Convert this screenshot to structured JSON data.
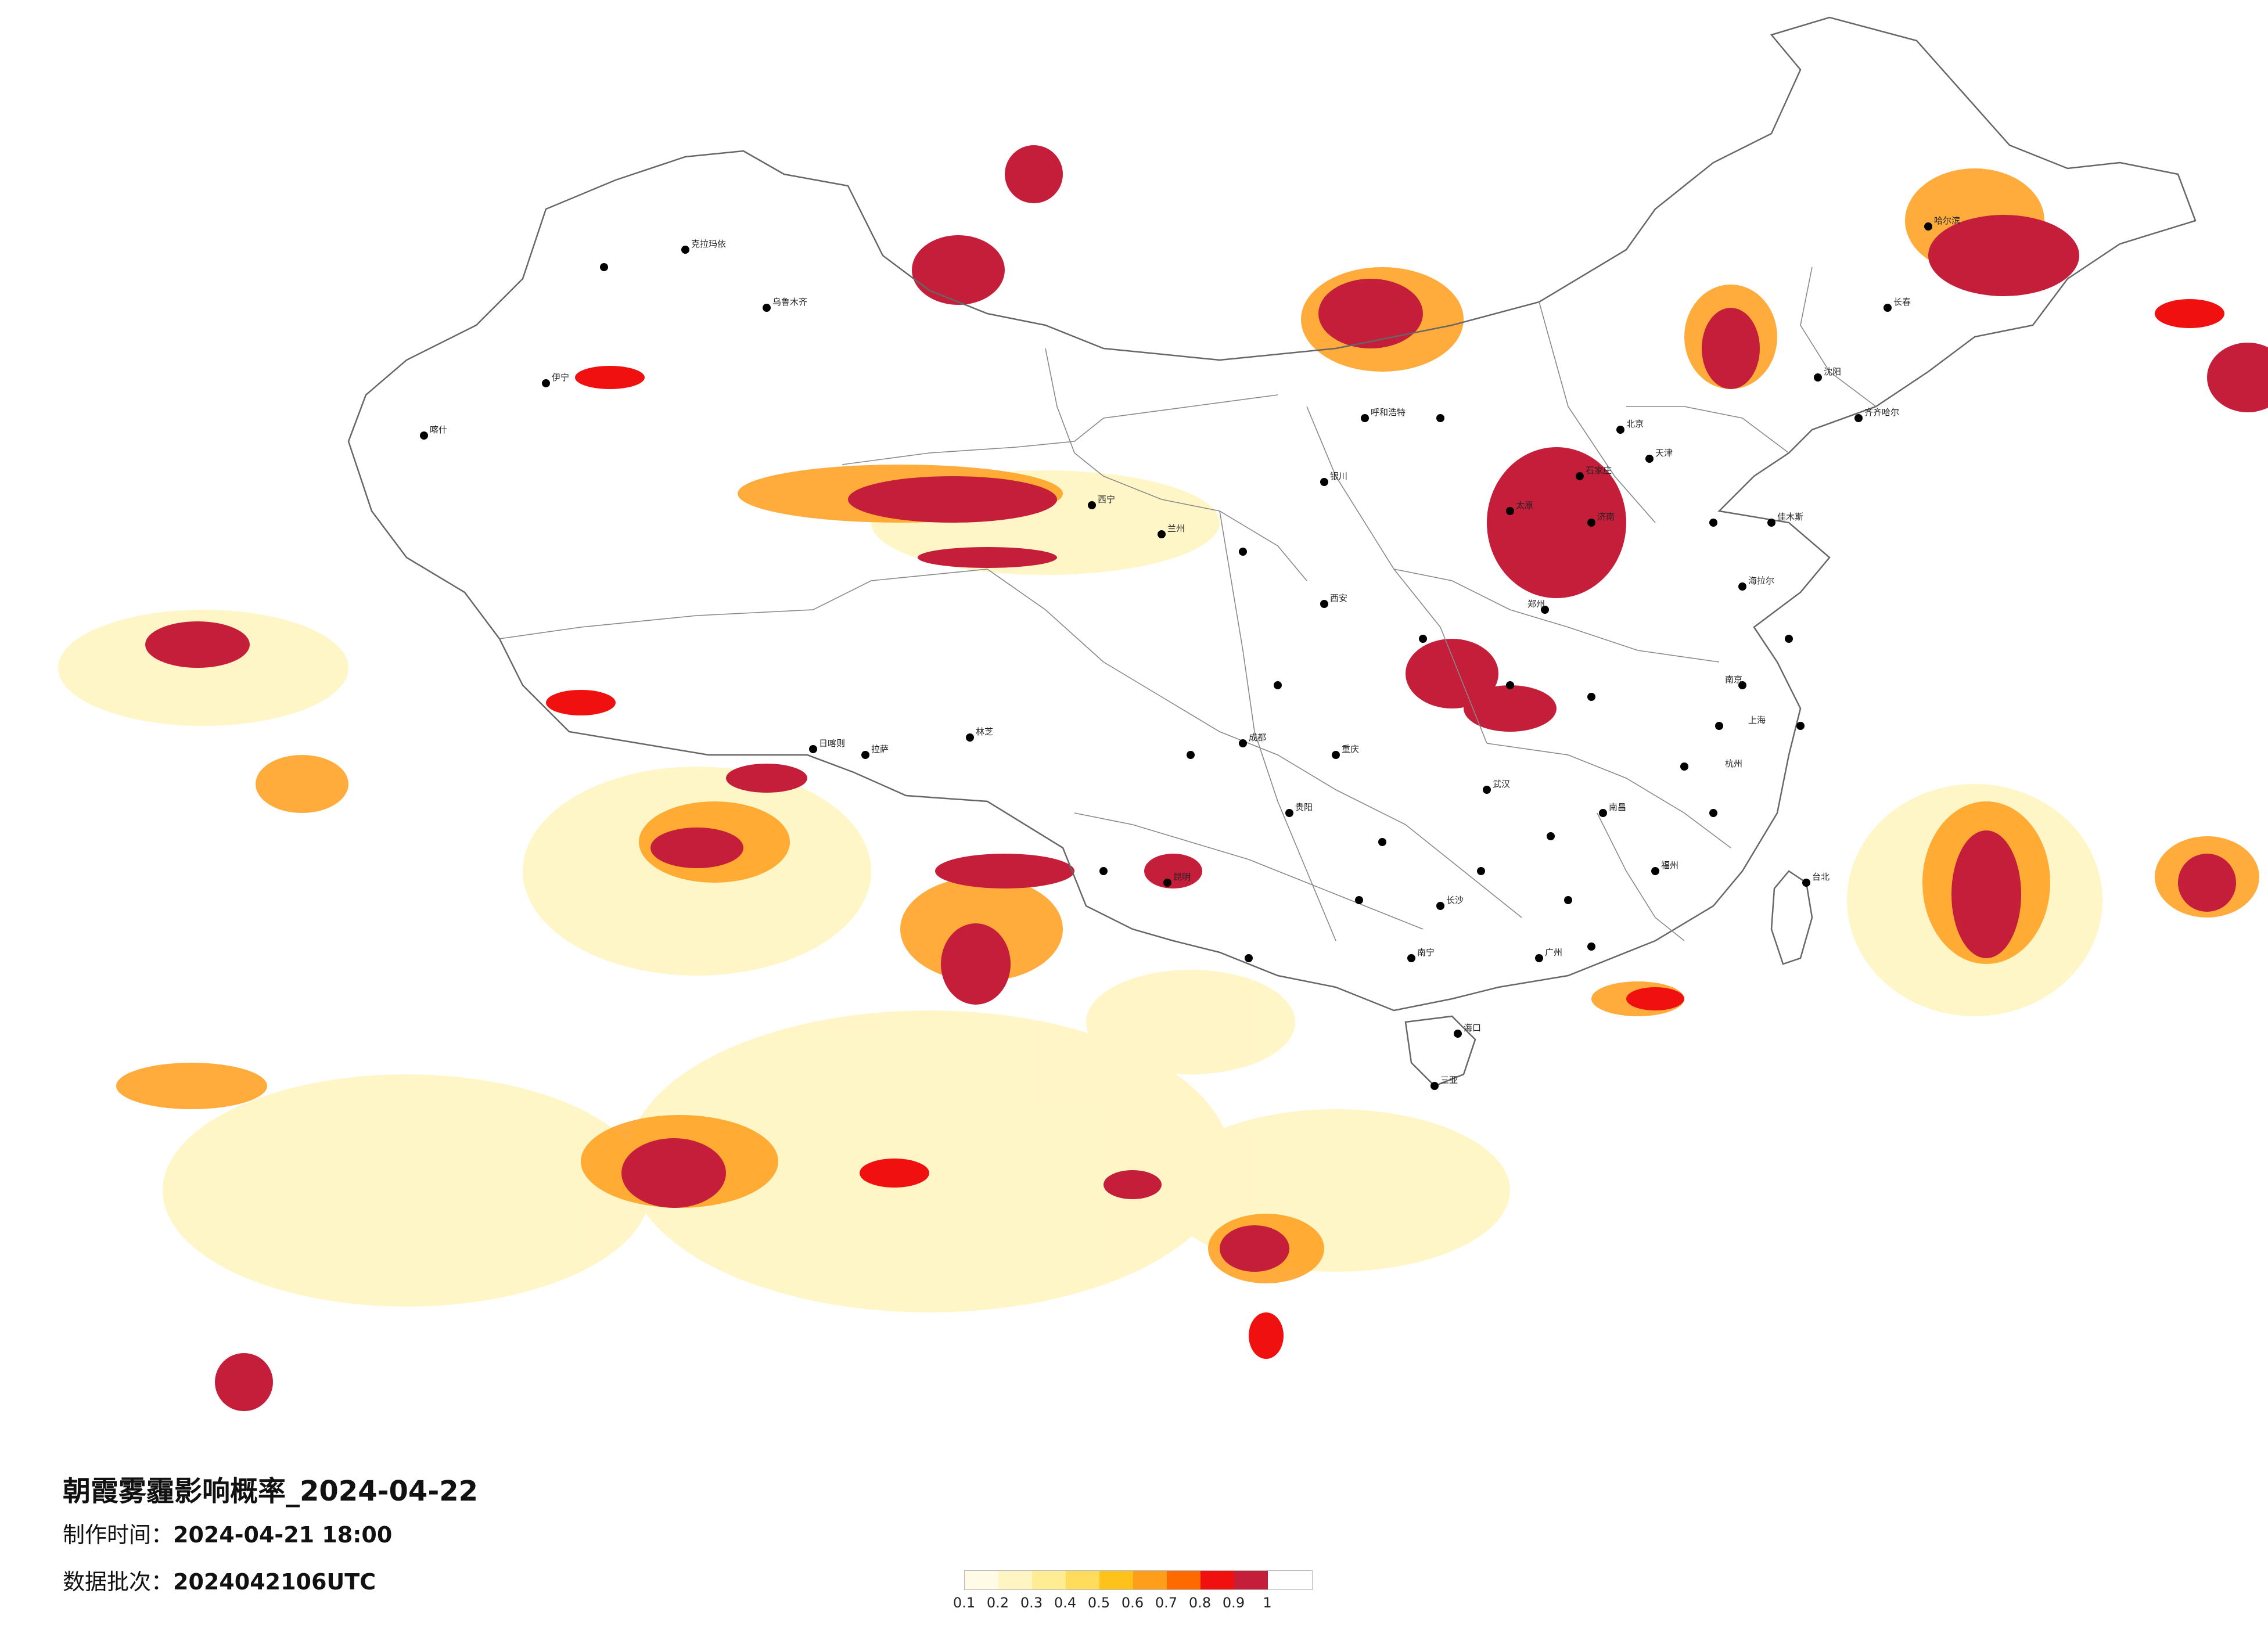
{
  "title": "朝霞雾霾影响概率_2024-04-22",
  "meta": {
    "made_label": "制作时间：",
    "made_value": "2024-04-21 18:00",
    "batch_label": "数据批次：",
    "batch_value": "2024042106UTC"
  },
  "legend": {
    "colors": [
      "#fffbe6",
      "#fff5c2",
      "#ffed94",
      "#ffdc5c",
      "#ffc21a",
      "#ff9e1a",
      "#ff6a00",
      "#f01010",
      "#c41e3a"
    ],
    "ticks": [
      "0.1",
      "0.2",
      "0.3",
      "0.4",
      "0.5",
      "0.6",
      "0.7",
      "0.8",
      "0.9",
      "1"
    ]
  },
  "cities": [
    {
      "name": "哈尔滨"
    },
    {
      "name": "长春"
    },
    {
      "name": "沈阳"
    },
    {
      "name": "北京"
    },
    {
      "name": "天津"
    },
    {
      "name": "石家庄"
    },
    {
      "name": "太原"
    },
    {
      "name": "郑州"
    },
    {
      "name": "济南"
    },
    {
      "name": "南京"
    },
    {
      "name": "上海"
    },
    {
      "name": "杭州"
    },
    {
      "name": "武汉"
    },
    {
      "name": "长沙"
    },
    {
      "name": "南昌"
    },
    {
      "name": "福州"
    },
    {
      "name": "广州"
    },
    {
      "name": "南宁"
    },
    {
      "name": "海口"
    },
    {
      "name": "昆明"
    },
    {
      "name": "贵阳"
    },
    {
      "name": "成都"
    },
    {
      "name": "重庆"
    },
    {
      "name": "西安"
    },
    {
      "name": "兰州"
    },
    {
      "name": "西宁"
    },
    {
      "name": "银川"
    },
    {
      "name": "呼和浩特"
    },
    {
      "name": "乌鲁木齐"
    },
    {
      "name": "拉萨"
    },
    {
      "name": "台北"
    },
    {
      "name": "喀什"
    },
    {
      "name": "伊宁"
    },
    {
      "name": "克拉玛依"
    },
    {
      "name": "海拉尔"
    },
    {
      "name": "齐齐哈尔"
    },
    {
      "name": "佳木斯"
    },
    {
      "name": "日喀则"
    },
    {
      "name": "林芝"
    },
    {
      "name": "三亚"
    }
  ]
}
